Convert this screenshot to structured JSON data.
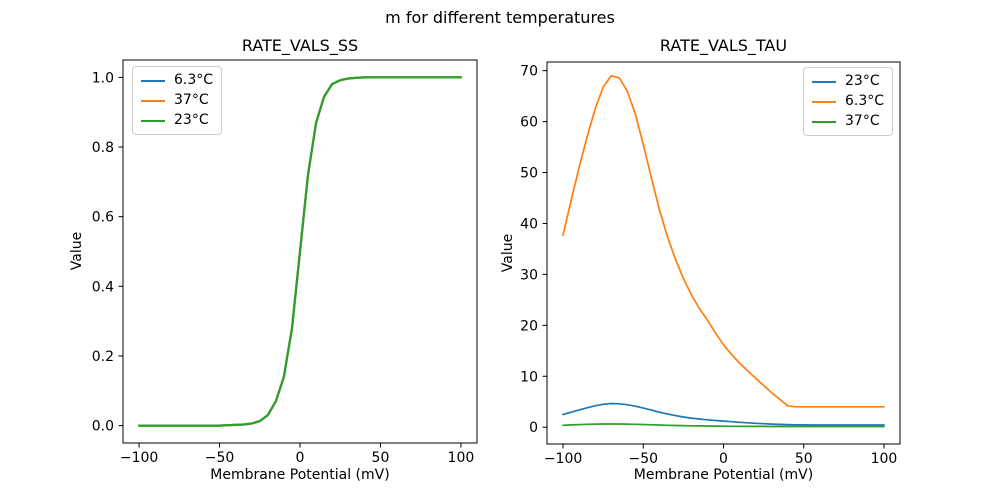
{
  "figure": {
    "suptitle": "m for different temperatures",
    "background_color": "#ffffff",
    "text_color": "#000000"
  },
  "chart_data": [
    {
      "type": "line",
      "title": "RATE_VALS_SS",
      "xlabel": "Membrane Potential (mV)",
      "ylabel": "Value",
      "grid": false,
      "legend_position": "upper-left",
      "xlim": [
        -110,
        110
      ],
      "ylim": [
        -0.05,
        1.05
      ],
      "xticks": [
        -100,
        -50,
        0,
        50,
        100
      ],
      "xtick_labels": [
        "−100",
        "−50",
        "0",
        "50",
        "100"
      ],
      "yticks": [
        0,
        0.2,
        0.4,
        0.6,
        0.8,
        1.0
      ],
      "ytick_labels": [
        "0.0",
        "0.2",
        "0.4",
        "0.6",
        "0.8",
        "1.0"
      ],
      "x": [
        -100,
        -95,
        -90,
        -85,
        -80,
        -75,
        -70,
        -65,
        -60,
        -55,
        -50,
        -45,
        -40,
        -35,
        -30,
        -25,
        -20,
        -15,
        -10,
        -5,
        0,
        5,
        10,
        15,
        20,
        25,
        30,
        35,
        40,
        45,
        50,
        55,
        60,
        65,
        70,
        75,
        80,
        85,
        90,
        95,
        100
      ],
      "series": [
        {
          "name": "6.3°C",
          "color": "#1f77b4",
          "values": [
            0,
            0,
            0,
            0,
            0,
            0,
            0,
            0,
            0,
            0,
            0,
            0.001,
            0.002,
            0.003,
            0.006,
            0.013,
            0.03,
            0.07,
            0.14,
            0.28,
            0.5,
            0.72,
            0.87,
            0.945,
            0.981,
            0.992,
            0.997,
            0.999,
            1,
            1,
            1,
            1,
            1,
            1,
            1,
            1,
            1,
            1,
            1,
            1,
            1
          ]
        },
        {
          "name": "37°C",
          "color": "#ff7f0e",
          "values": [
            0,
            0,
            0,
            0,
            0,
            0,
            0,
            0,
            0,
            0,
            0,
            0.001,
            0.002,
            0.003,
            0.006,
            0.013,
            0.03,
            0.07,
            0.14,
            0.28,
            0.5,
            0.72,
            0.87,
            0.945,
            0.981,
            0.992,
            0.997,
            0.999,
            1,
            1,
            1,
            1,
            1,
            1,
            1,
            1,
            1,
            1,
            1,
            1,
            1
          ]
        },
        {
          "name": "23°C",
          "color": "#2ca02c",
          "values": [
            0,
            0,
            0,
            0,
            0,
            0,
            0,
            0,
            0,
            0,
            0,
            0.001,
            0.002,
            0.003,
            0.006,
            0.013,
            0.03,
            0.07,
            0.14,
            0.28,
            0.5,
            0.72,
            0.87,
            0.945,
            0.981,
            0.992,
            0.997,
            0.999,
            1,
            1,
            1,
            1,
            1,
            1,
            1,
            1,
            1,
            1,
            1,
            1,
            1
          ]
        }
      ]
    },
    {
      "type": "line",
      "title": "RATE_VALS_TAU",
      "xlabel": "Membrane Potential (mV)",
      "ylabel": "Value",
      "grid": false,
      "legend_position": "upper-right",
      "xlim": [
        -110,
        110
      ],
      "ylim": [
        -3.3,
        71.7
      ],
      "xticks": [
        -100,
        -50,
        0,
        50,
        100
      ],
      "xtick_labels": [
        "−100",
        "−50",
        "0",
        "50",
        "100"
      ],
      "yticks": [
        0,
        10,
        20,
        30,
        40,
        50,
        60,
        70
      ],
      "ytick_labels": [
        "0",
        "10",
        "20",
        "30",
        "40",
        "50",
        "60",
        "70"
      ],
      "x": [
        -100,
        -95,
        -90,
        -85,
        -80,
        -75,
        -70,
        -65,
        -60,
        -55,
        -50,
        -45,
        -40,
        -35,
        -30,
        -25,
        -20,
        -15,
        -10,
        -5,
        0,
        5,
        10,
        15,
        20,
        25,
        30,
        35,
        40,
        45,
        50,
        55,
        60,
        65,
        70,
        75,
        80,
        85,
        90,
        95,
        100
      ],
      "series": [
        {
          "name": "23°C",
          "color": "#1f77b4",
          "values": [
            2.5,
            2.95,
            3.4,
            3.8,
            4.2,
            4.5,
            4.65,
            4.6,
            4.42,
            4.12,
            3.75,
            3.35,
            2.95,
            2.6,
            2.28,
            2.0,
            1.78,
            1.6,
            1.45,
            1.32,
            1.2,
            1.08,
            0.97,
            0.86,
            0.77,
            0.68,
            0.61,
            0.55,
            0.5,
            0.47,
            0.45,
            0.44,
            0.43,
            0.43,
            0.43,
            0.43,
            0.43,
            0.43,
            0.43,
            0.43,
            0.43
          ]
        },
        {
          "name": "6.3°C",
          "color": "#ff7f0e",
          "values": [
            37.7,
            44.5,
            51.0,
            57.0,
            62.5,
            66.8,
            69.0,
            68.6,
            66.0,
            61.5,
            55.5,
            49.0,
            42.8,
            37.5,
            33.0,
            29.2,
            26.0,
            23.3,
            21.0,
            18.5,
            16.2,
            14.3,
            12.6,
            11.1,
            9.6,
            8.2,
            6.8,
            5.5,
            4.2,
            4.0,
            4.0,
            4.0,
            4.0,
            4.0,
            4.0,
            4.0,
            4.0,
            4.0,
            4.0,
            4.0,
            4.0
          ]
        },
        {
          "name": "37°C",
          "color": "#2ca02c",
          "values": [
            0.38,
            0.45,
            0.51,
            0.56,
            0.6,
            0.62,
            0.63,
            0.62,
            0.6,
            0.56,
            0.52,
            0.47,
            0.43,
            0.38,
            0.34,
            0.31,
            0.28,
            0.25,
            0.23,
            0.21,
            0.19,
            0.18,
            0.17,
            0.16,
            0.15,
            0.15,
            0.14,
            0.14,
            0.14,
            0.14,
            0.14,
            0.14,
            0.14,
            0.14,
            0.14,
            0.14,
            0.14,
            0.14,
            0.14,
            0.14,
            0.14
          ]
        }
      ]
    }
  ]
}
